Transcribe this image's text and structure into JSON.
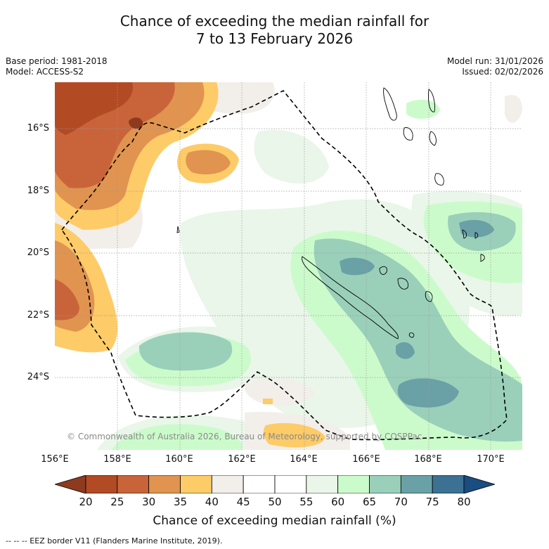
{
  "title_line1": "Chance of exceeding the median rainfall for",
  "title_line2": "7 to 13 February 2026",
  "base_period": "Base period: 1981-2018",
  "model": "Model: ACCESS-S2",
  "model_run": "Model run: 31/01/2026",
  "issued": "Issued: 02/02/2026",
  "copyright": "© Commonwealth of Australia 2026, Bureau of Meteorology, supported by COSPPac",
  "lat_labels": [
    "16°S",
    "18°S",
    "20°S",
    "22°S",
    "24°S"
  ],
  "lon_labels": [
    "156°E",
    "158°E",
    "160°E",
    "162°E",
    "164°E",
    "166°E",
    "168°E",
    "170°E"
  ],
  "colorbar": {
    "ticks": [
      "20",
      "25",
      "30",
      "35",
      "40",
      "45",
      "50",
      "55",
      "60",
      "65",
      "70",
      "75",
      "80"
    ],
    "colors": [
      "#8e3a1f",
      "#b24a24",
      "#c9643a",
      "#e09450",
      "#fdcb67",
      "#f2eeea",
      "#ffffff",
      "#ffffff",
      "#e9f6e9",
      "#ccfbcb",
      "#9ad0ba",
      "#6aa1a6",
      "#3c7193",
      "#1a4d80"
    ],
    "title": "Chance of exceeding median rainfall (%)"
  },
  "eez_note": "--  --  -- EEZ border V11 (Flanders Marine Institute, 2019).",
  "map_extent": {
    "lon_min": 156,
    "lon_max": 171,
    "lat_min": -26.8,
    "lat_max": -14.9
  }
}
